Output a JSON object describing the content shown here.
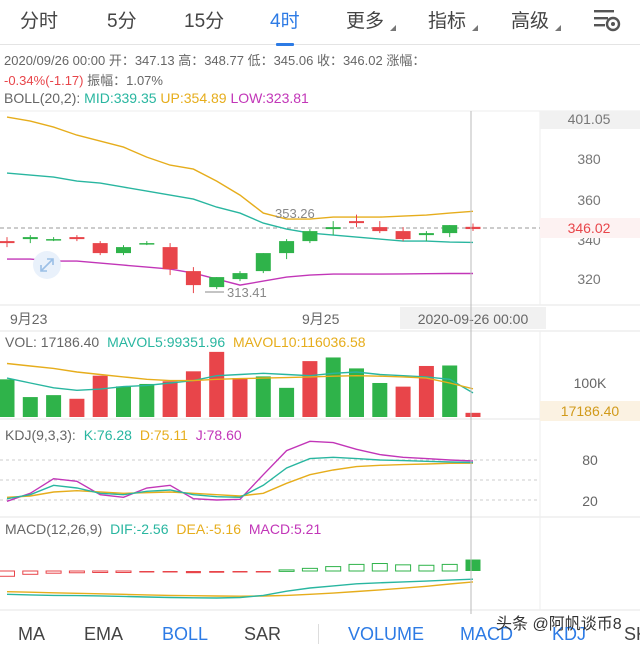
{
  "periods": {
    "items": [
      "分时",
      "5分",
      "15分",
      "4时",
      "更多",
      "指标",
      "高级"
    ],
    "active": "4时"
  },
  "info": {
    "line1": "2020/09/26 00:00 开：347.13 高：348.77 低：345.06 收：346.02 涨幅：",
    "change": "-0.34%(-1.17)",
    "amplitude": "振幅：1.07%"
  },
  "boll": {
    "label": "BOLL(20,2):",
    "mid": "MID:339.35",
    "up": "UP:354.89",
    "low": "LOW:323.81"
  },
  "price_axis": [
    "401.05",
    "380",
    "360",
    "340",
    "320"
  ],
  "current_price": "346.02",
  "marks": {
    "high": "353.26",
    "low": "313.41"
  },
  "dates": [
    "9月23",
    "9月25"
  ],
  "crosshair_date": "2020-09-26 00:00",
  "vol": {
    "label": "VOL: 17186.40",
    "mavol5": "MAVOL5:99351.96",
    "mavol10": "MAVOL10:116036.58",
    "axis": "100K",
    "current": "17186.40"
  },
  "kdj": {
    "label": "KDJ(9,3,3):",
    "k": "K:76.28",
    "d": "D:75.11",
    "j": "J:78.60",
    "axis": [
      "80",
      "20"
    ]
  },
  "macd": {
    "label": "MACD(12,26,9)",
    "dif": "DIF:-2.56",
    "dea": "DEA:-5.16",
    "macd": "MACD:5.21"
  },
  "indicators": [
    "MA",
    "EMA",
    "BOLL",
    "SAR",
    "VOLUME",
    "MACD",
    "KDJ",
    "SK"
  ],
  "watermark": "头条 @阿帆谈币8",
  "colors": {
    "up": "#2fb34a",
    "down": "#e8454a",
    "mid": "#29b6a0",
    "upper": "#e6ad1c",
    "lower": "#c236b8",
    "accent": "#2d7be5"
  },
  "chart_data": [
    {
      "type": "candlestick",
      "title": "BOLL(20,2)",
      "ylim": [
        313.41,
        401.05
      ],
      "ohlc": [
        [
          340,
          342,
          337,
          339
        ],
        [
          341,
          343,
          339,
          342
        ],
        [
          341,
          342,
          340,
          341
        ],
        [
          342,
          343,
          340,
          341
        ],
        [
          339,
          340,
          333,
          334
        ],
        [
          334,
          338,
          333,
          337
        ],
        [
          339,
          340,
          338,
          339
        ],
        [
          337,
          339,
          323,
          326
        ],
        [
          325,
          327,
          314,
          318
        ],
        [
          317,
          322,
          316,
          322
        ],
        [
          321,
          325,
          320,
          324
        ],
        [
          325,
          334,
          324,
          334
        ],
        [
          334,
          341,
          331,
          340
        ],
        [
          340,
          346,
          339,
          345
        ],
        [
          346,
          350,
          343,
          347
        ],
        [
          350,
          353.26,
          347,
          349
        ],
        [
          347,
          350,
          344,
          345
        ],
        [
          345,
          347,
          340,
          341
        ],
        [
          343,
          345,
          340,
          344
        ],
        [
          344,
          348,
          342,
          348
        ],
        [
          347.13,
          348.77,
          345.06,
          346.02
        ]
      ],
      "series": [
        {
          "name": "MID",
          "values": [
            374,
            373,
            372,
            370,
            369,
            367,
            365,
            363,
            361,
            357,
            354,
            349,
            346,
            344,
            343,
            342,
            341,
            340,
            340,
            339.5,
            339.35
          ]
        },
        {
          "name": "UP",
          "values": [
            402,
            400,
            397,
            393,
            390,
            387,
            382,
            378,
            376,
            370,
            363,
            354,
            351,
            351,
            352,
            352,
            352,
            352.5,
            353,
            354,
            354.89
          ]
        },
        {
          "name": "LOW",
          "values": [
            331,
            331,
            330,
            330,
            329,
            328,
            327,
            326,
            324,
            321,
            318,
            320,
            322,
            323,
            323.5,
            323.5,
            323.5,
            323.6,
            323.7,
            323.8,
            323.81
          ]
        }
      ]
    },
    {
      "type": "bar",
      "title": "VOL",
      "values": [
        155000,
        82000,
        90000,
        75000,
        170000,
        126000,
        136000,
        147000,
        188000,
        268000,
        160000,
        167000,
        120000,
        230000,
        245000,
        200000,
        140000,
        125000,
        210000,
        212000,
        17186.4
      ],
      "directions": [
        "up",
        "up",
        "up",
        "down",
        "down",
        "up",
        "up",
        "down",
        "down",
        "down",
        "down",
        "up",
        "up",
        "down",
        "up",
        "up",
        "up",
        "down",
        "down",
        "up",
        "down"
      ],
      "series": [
        {
          "name": "MAVOL5",
          "values": [
            160000,
            140000,
            120000,
            110000,
            115000,
            125000,
            130000,
            140000,
            150000,
            170000,
            175000,
            180000,
            175000,
            170000,
            180000,
            185000,
            175000,
            170000,
            165000,
            155000,
            99351.96
          ]
        },
        {
          "name": "MAVOL10",
          "values": [
            220000,
            210000,
            200000,
            185000,
            175000,
            165000,
            155000,
            150000,
            150000,
            155000,
            158000,
            160000,
            162000,
            165000,
            168000,
            170000,
            168000,
            165000,
            160000,
            140000,
            116036.58
          ]
        }
      ]
    },
    {
      "type": "line",
      "title": "KDJ(9,3,3)",
      "axis_ticks": [
        80,
        20
      ],
      "series": [
        {
          "name": "K",
          "values": [
            22,
            28,
            42,
            38,
            30,
            28,
            33,
            35,
            28,
            25,
            24,
            42,
            68,
            82,
            84,
            82,
            80,
            79,
            78,
            77,
            76.28
          ]
        },
        {
          "name": "D",
          "values": [
            24,
            26,
            32,
            34,
            32,
            30,
            31,
            32,
            30,
            28,
            26,
            30,
            45,
            58,
            65,
            70,
            72,
            73,
            74,
            75,
            75.11
          ]
        },
        {
          "name": "J",
          "values": [
            18,
            30,
            52,
            48,
            28,
            24,
            38,
            42,
            22,
            20,
            21,
            58,
            94,
            108,
            106,
            96,
            88,
            84,
            82,
            80,
            78.6
          ]
        }
      ]
    },
    {
      "type": "bar",
      "title": "MACD(12,26,9)",
      "values": [
        -2.4,
        -1.5,
        -1.0,
        -0.8,
        -0.6,
        -0.5,
        -0.4,
        -0.6,
        -1.0,
        -0.8,
        -0.3,
        -0.1,
        0.5,
        1.2,
        2.0,
        3.0,
        3.4,
        2.8,
        2.6,
        3.0,
        5.21
      ],
      "series": [
        {
          "name": "DIF",
          "values": [
            -17,
            -17.5,
            -18,
            -18.2,
            -18.5,
            -19,
            -19.5,
            -20,
            -20.3,
            -20.5,
            -20,
            -18,
            -14,
            -11,
            -9,
            -7,
            -6,
            -5.2,
            -4.4,
            -3.5,
            -2.56
          ]
        },
        {
          "name": "DEA",
          "values": [
            -14.5,
            -15,
            -15.5,
            -16,
            -16.5,
            -17,
            -17.5,
            -18,
            -18.3,
            -18.6,
            -18.8,
            -18.6,
            -18,
            -17,
            -15.8,
            -14.3,
            -12.8,
            -11.2,
            -9.4,
            -7.2,
            -5.16
          ]
        }
      ]
    }
  ]
}
